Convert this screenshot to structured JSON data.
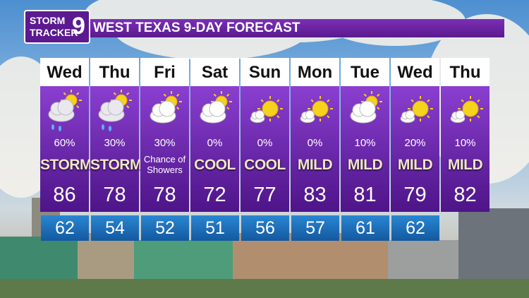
{
  "header": {
    "logo_top": "STORM",
    "logo_bottom": "TRACKER",
    "logo_number": "9",
    "title": "WEST TEXAS 9-DAY FORECAST"
  },
  "days": [
    {
      "day": "Wed",
      "precip": "60%",
      "condition": "STORMY",
      "high": "86"
    },
    {
      "day": "Thu",
      "precip": "30%",
      "condition": "STORMY",
      "high": "78"
    },
    {
      "day": "Fri",
      "precip": "30%",
      "condition": "Chance of Showers",
      "high": "78"
    },
    {
      "day": "Sat",
      "precip": "0%",
      "condition": "COOL",
      "high": "72"
    },
    {
      "day": "Sun",
      "precip": "0%",
      "condition": "COOL",
      "high": "77"
    },
    {
      "day": "Mon",
      "precip": "0%",
      "condition": "MILD",
      "high": "83"
    },
    {
      "day": "Tue",
      "precip": "10%",
      "condition": "MILD",
      "high": "81"
    },
    {
      "day": "Wed",
      "precip": "20%",
      "condition": "MILD",
      "high": "79"
    },
    {
      "day": "Thu",
      "precip": "10%",
      "condition": "MILD",
      "high": "82"
    }
  ],
  "lows": [
    "62",
    "54",
    "52",
    "51",
    "56",
    "57",
    "61",
    "62"
  ]
}
